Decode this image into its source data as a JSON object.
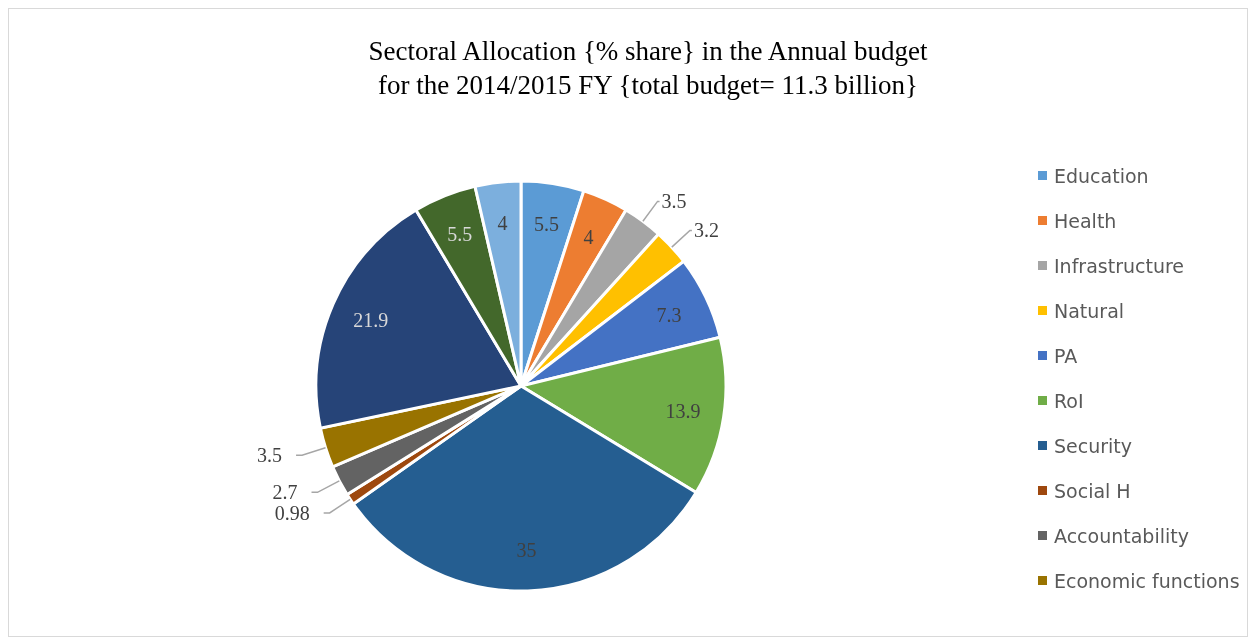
{
  "chart_data": {
    "type": "pie",
    "title": "Sectoral Allocation {% share} in the Annual budget\nfor the 2014/2015 FY {total budget= 11.3 billion}",
    "categories": [
      "Education",
      "Health",
      "Infrastructure",
      "Natural",
      "PA",
      "RoI",
      "Security",
      "Social H",
      "Accountability",
      "Economic functions",
      null,
      null,
      null
    ],
    "values": [
      5.5,
      4,
      3.5,
      3.2,
      7.3,
      13.9,
      35,
      0.98,
      2.7,
      3.5,
      21.9,
      5.5,
      4
    ],
    "colors": [
      "#5b9bd5",
      "#ed7d31",
      "#a5a5a5",
      "#ffc000",
      "#4472c4",
      "#70ad47",
      "#255e91",
      "#9e480e",
      "#636363",
      "#997300",
      "#264478",
      "#43682b",
      "#7cafdd"
    ],
    "data_labels": true,
    "legend": "right"
  }
}
